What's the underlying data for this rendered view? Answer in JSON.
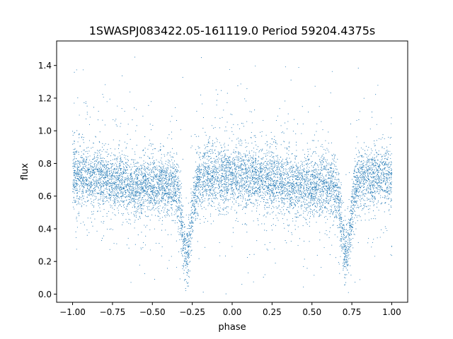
{
  "chart_data": {
    "type": "scatter",
    "title": "1SWASPJ083422.05-161119.0 Period 59204.4375s",
    "xlabel": "phase",
    "ylabel": "flux",
    "xlim": [
      -1.1,
      1.1
    ],
    "ylim": [
      -0.05,
      1.55
    ],
    "x_ticks": [
      -1.0,
      -0.75,
      -0.5,
      -0.25,
      0.0,
      0.25,
      0.5,
      0.75,
      1.0
    ],
    "x_tick_labels": [
      "−1.00",
      "−0.75",
      "−0.50",
      "−0.25",
      "0.00",
      "0.25",
      "0.50",
      "0.75",
      "1.00"
    ],
    "y_ticks": [
      0.0,
      0.2,
      0.4,
      0.6,
      0.8,
      1.0,
      1.2,
      1.4
    ],
    "y_tick_labels": [
      "0.0",
      "0.2",
      "0.4",
      "0.6",
      "0.8",
      "1.0",
      "1.2",
      "1.4"
    ],
    "grid": false,
    "marker_color": "#1f77b4",
    "series": [
      {
        "description_of_shape": [
          {
            "phase": -1.0,
            "flux": 0.72
          },
          {
            "phase": -0.8,
            "flux": 0.66
          },
          {
            "phase": -0.6,
            "flux": 0.67
          },
          {
            "phase": -0.4,
            "flux": 0.66
          },
          {
            "phase": -0.32,
            "flux": 0.55
          },
          {
            "phase": -0.29,
            "flux": 0.3
          },
          {
            "phase": -0.27,
            "flux": 0.35
          },
          {
            "phase": -0.24,
            "flux": 0.62
          },
          {
            "phase": -0.15,
            "flux": 0.72
          },
          {
            "phase": 0.0,
            "flux": 0.73
          },
          {
            "phase": 0.2,
            "flux": 0.66
          },
          {
            "phase": 0.4,
            "flux": 0.67
          },
          {
            "phase": 0.6,
            "flux": 0.66
          },
          {
            "phase": 0.68,
            "flux": 0.55
          },
          {
            "phase": 0.71,
            "flux": 0.3
          },
          {
            "phase": 0.73,
            "flux": 0.35
          },
          {
            "phase": 0.76,
            "flux": 0.62
          },
          {
            "phase": 0.85,
            "flux": 0.72
          },
          {
            "phase": 1.0,
            "flux": 0.73
          }
        ],
        "eclipse_phases": [
          -0.285,
          0.715
        ],
        "eclipse_min_flux": 0.25,
        "scatter_sigma": 0.09,
        "flux_range": [
          0.0,
          1.5
        ]
      }
    ]
  }
}
